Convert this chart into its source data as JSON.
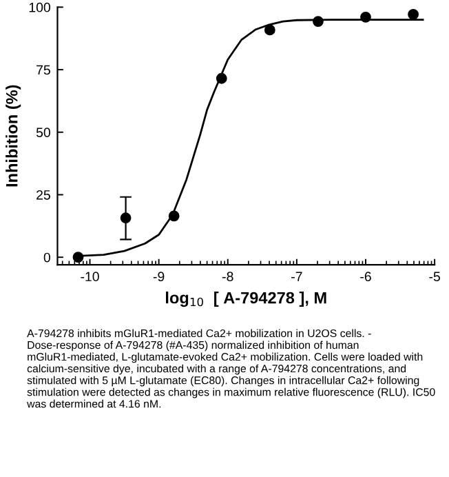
{
  "chart_data": {
    "type": "scatter",
    "xlabel": "log$_{10}$  [ A-794278 ], M",
    "ylabel": "Inhibition (%)",
    "xlim": [
      -10.47,
      -5
    ],
    "xticks": [
      -10,
      -9,
      -8,
      -7,
      -6,
      -5
    ],
    "ylim": [
      -3,
      100
    ],
    "yticks": [
      0,
      25,
      50,
      75,
      100
    ],
    "grid": false,
    "legend": false,
    "series": [
      {
        "type": "line",
        "color": "#000000",
        "marker": "none",
        "line_style": "solid",
        "x": [
          -10.17,
          -9.8,
          -9.5,
          -9.2,
          -9.0,
          -8.8,
          -8.6,
          -8.4,
          -8.3,
          -8.2,
          -8.0,
          -7.8,
          -7.6,
          -7.4,
          -7.2,
          -7.0,
          -6.5,
          -6.0,
          -5.17
        ],
        "values": [
          0.5,
          1,
          2.5,
          5.5,
          9,
          17,
          31,
          49,
          59,
          66,
          79,
          87,
          91,
          93,
          94.3,
          94.8,
          95,
          95,
          95
        ]
      },
      {
        "color": "#000000",
        "marker": "circle",
        "x": [
          -10.17,
          -9.48,
          -8.78,
          -8.09,
          -7.39,
          -6.69,
          -6.0,
          -5.31
        ],
        "values": [
          0,
          15.7,
          16.5,
          71.5,
          90.9,
          94.3,
          96,
          97.1
        ],
        "errors": [
          null,
          [
            7.1,
            24.1
          ],
          null,
          null,
          null,
          null,
          null,
          null
        ]
      }
    ],
    "annotations": [
      "A-794278 inhibits mGluR1-mediated Ca2+ mobilization in U2OS cells. - Dose-response of A-794278 (#A-435) normalized inhibition of human mGluR1-mediated, L-glutamate-evoked Ca2+ mobilization. Cells were loaded with calcium-sensitive dye, incubated with a range of A-794278 concentrations, and stimulated with 5 µM L-glutamate (EC80). Changes in intracellular Ca2+ following stimulation were detected as changes in maximum relative fluorescence (RLU). IC50 was determined at 4.16 nM."
    ]
  }
}
